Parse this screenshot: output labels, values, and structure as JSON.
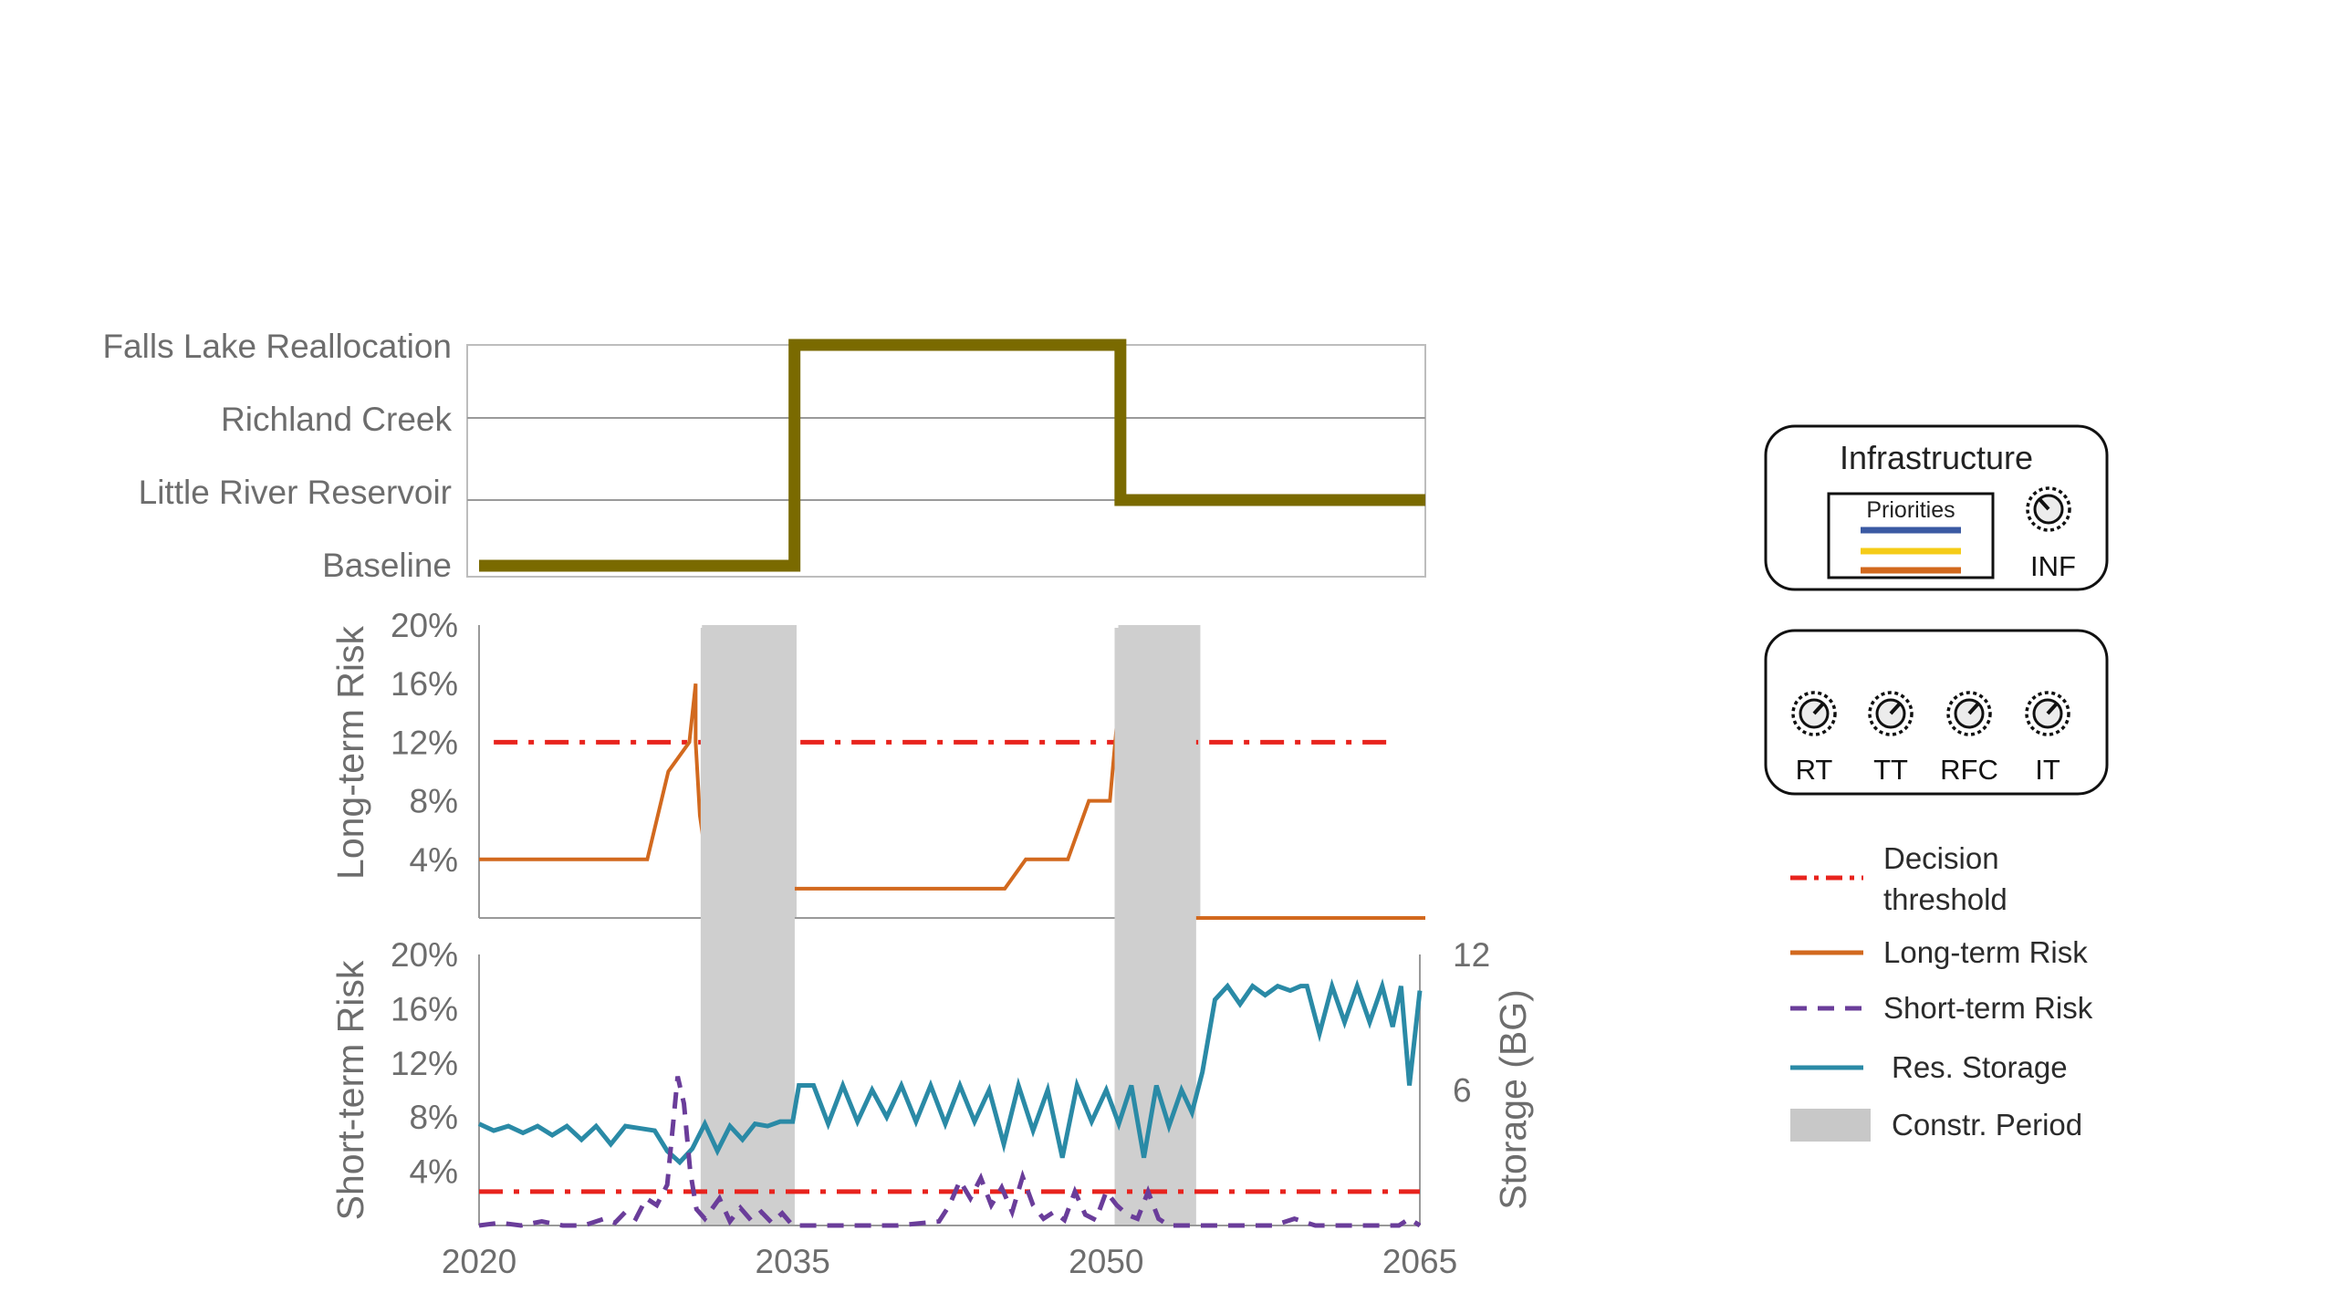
{
  "chart_data": [
    {
      "type": "line",
      "categories": [
        "Baseline",
        "Little River Reservoir",
        "Richland Creek",
        "Falls Lake Reallocation"
      ],
      "x": [
        2020,
        2035,
        2035,
        2050.5,
        2050.5,
        2065
      ],
      "values": [
        "Baseline",
        "Baseline",
        "Falls Lake Reallocation",
        "Falls Lake Reallocation",
        "Little River Reservoir",
        "Little River Reservoir"
      ],
      "color": "#7a6a00"
    },
    {
      "type": "line",
      "ylabel": "Long-term Risk",
      "yticks": [
        "4%",
        "8%",
        "12%",
        "16%",
        "20%"
      ],
      "ylim": [
        0,
        20
      ],
      "threshold": 12,
      "construction_periods": [
        [
          2030.6,
          2035.1
        ],
        [
          2050.4,
          2054.3
        ]
      ],
      "series": [
        {
          "name": "Long-term Risk",
          "color": "#d2691e",
          "x": [
            2020,
            2028,
            2029,
            2030,
            2030.3,
            2030.3,
            2030.5,
            2031,
            2045,
            2046,
            2048,
            2049,
            2050,
            2050.5,
            2050.5,
            2052,
            2065
          ],
          "values": [
            4,
            4,
            10,
            12,
            16,
            12,
            7,
            2,
            2,
            4,
            4,
            8,
            8,
            16,
            0,
            0,
            0
          ]
        }
      ]
    },
    {
      "type": "line",
      "ylabel": "Short-term Risk",
      "y2label": "Storage (BG)",
      "yticks": [
        "4%",
        "8%",
        "12%",
        "16%",
        "20%"
      ],
      "y2ticks": [
        "6",
        "12"
      ],
      "ylim": [
        0,
        20
      ],
      "y2lim": [
        0,
        12
      ],
      "threshold": 2.5,
      "construction_periods": [
        [
          2030.6,
          2035.1
        ],
        [
          2050.4,
          2054.3
        ]
      ],
      "xticks": [
        "2020",
        "2035",
        "2050",
        "2065"
      ],
      "xlim": [
        2020,
        2065
      ],
      "series": [
        {
          "name": "Short-term Risk",
          "color": "#6a3d9a",
          "x": [
            2020,
            2021,
            2022,
            2023,
            2024,
            2025,
            2026,
            2026.5,
            2027,
            2027.5,
            2028,
            2028.5,
            2029,
            2029.5,
            2029.8,
            2030.1,
            2030.4,
            2030.8,
            2031.5,
            2032,
            2032.5,
            2033,
            2033.5,
            2034,
            2034.5,
            2035,
            2036,
            2040,
            2042,
            2042.5,
            2043,
            2043.5,
            2044,
            2044.5,
            2045,
            2045.5,
            2046,
            2046.5,
            2047,
            2047.5,
            2048,
            2048.5,
            2049,
            2049.5,
            2050,
            2050.5,
            2051,
            2051.5,
            2052,
            2052.5,
            2053,
            2053.5,
            2054,
            2058,
            2059,
            2060,
            2061,
            2062,
            2063,
            2064,
            2064.5,
            2065
          ],
          "values": [
            0,
            0.2,
            0,
            0.3,
            0,
            0,
            0.5,
            0.2,
            1,
            0.5,
            2,
            1.5,
            3,
            11,
            9,
            4,
            1.2,
            0.5,
            2,
            0.3,
            1.3,
            0.4,
            1,
            0.2,
            0.9,
            0,
            0,
            0,
            0.3,
            1.5,
            3.3,
            2,
            3.5,
            1.5,
            2.8,
            1,
            3.6,
            1.5,
            0.5,
            1,
            0.4,
            2.5,
            0.8,
            0.4,
            2.5,
            1.5,
            0.8,
            0.5,
            2.5,
            0.5,
            0,
            0,
            0,
            0,
            0.5,
            0,
            0,
            0,
            0,
            0,
            0.5,
            0
          ]
        },
        {
          "name": "Res. Storage",
          "color": "#2a8aa6",
          "x": [
            2020,
            2020.7,
            2021.4,
            2022.1,
            2022.8,
            2023.5,
            2024.2,
            2024.9,
            2025.6,
            2026.3,
            2027,
            2027.7,
            2028.4,
            2029,
            2029.6,
            2030.2,
            2030.8,
            2031.4,
            2032,
            2032.6,
            2033.2,
            2033.8,
            2034.4,
            2035,
            2035.3,
            2036,
            2036.7,
            2037.4,
            2038.1,
            2038.8,
            2039.5,
            2040.2,
            2040.9,
            2041.6,
            2042.3,
            2043,
            2043.7,
            2044.4,
            2045.1,
            2045.8,
            2046.5,
            2047.2,
            2047.9,
            2048.6,
            2049.3,
            2050,
            2050.6,
            2051.2,
            2051.8,
            2052.4,
            2053,
            2053.6,
            2054.1,
            2054.6,
            2055.2,
            2055.8,
            2056.4,
            2057,
            2057.6,
            2058.2,
            2058.8,
            2059.3,
            2059.6,
            2060.2,
            2060.8,
            2061.4,
            2062,
            2062.6,
            2063.2,
            2063.7,
            2064.1,
            2064.5,
            2065
          ],
          "values": [
            4.5,
            4.2,
            4.4,
            4.1,
            4.4,
            4.0,
            4.4,
            3.8,
            4.4,
            3.6,
            4.4,
            4.3,
            4.2,
            3.3,
            2.8,
            3.4,
            4.5,
            3.3,
            4.4,
            3.8,
            4.5,
            4.4,
            4.6,
            4.6,
            6.2,
            6.2,
            4.5,
            6.2,
            4.6,
            6.0,
            4.8,
            6.2,
            4.6,
            6.2,
            4.5,
            6.2,
            4.6,
            6.0,
            3.6,
            6.2,
            4.2,
            6.0,
            3.0,
            6.2,
            4.6,
            6.0,
            4.5,
            6.2,
            3.0,
            6.2,
            4.4,
            6.0,
            5.0,
            6.8,
            10.0,
            10.6,
            9.8,
            10.6,
            10.2,
            10.6,
            10.4,
            10.6,
            10.6,
            8.5,
            10.6,
            9.0,
            10.6,
            9.0,
            10.6,
            8.8,
            10.6,
            6.2,
            10.4
          ]
        }
      ]
    }
  ],
  "legend": {
    "infrastructure_title": "Infrastructure",
    "priorities_label": "Priorities",
    "priority_colors": [
      "#3b5aa3",
      "#f5cc18",
      "#d2691e"
    ],
    "inf_label": "INF",
    "knobs": [
      "RT",
      "TT",
      "RFC",
      "IT"
    ],
    "items": [
      {
        "label_line1": "Decision",
        "label_line2": "threshold",
        "color": "#e8231d"
      },
      {
        "label_line1": "Long-term Risk",
        "color": "#d2691e"
      },
      {
        "label_line1": "Short-term Risk",
        "color": "#6a3d9a"
      },
      {
        "label_line1": "Res. Storage",
        "color": "#2a8aa6"
      },
      {
        "label_line1": "Constr. Period",
        "color": "#c8c8c8"
      }
    ]
  }
}
